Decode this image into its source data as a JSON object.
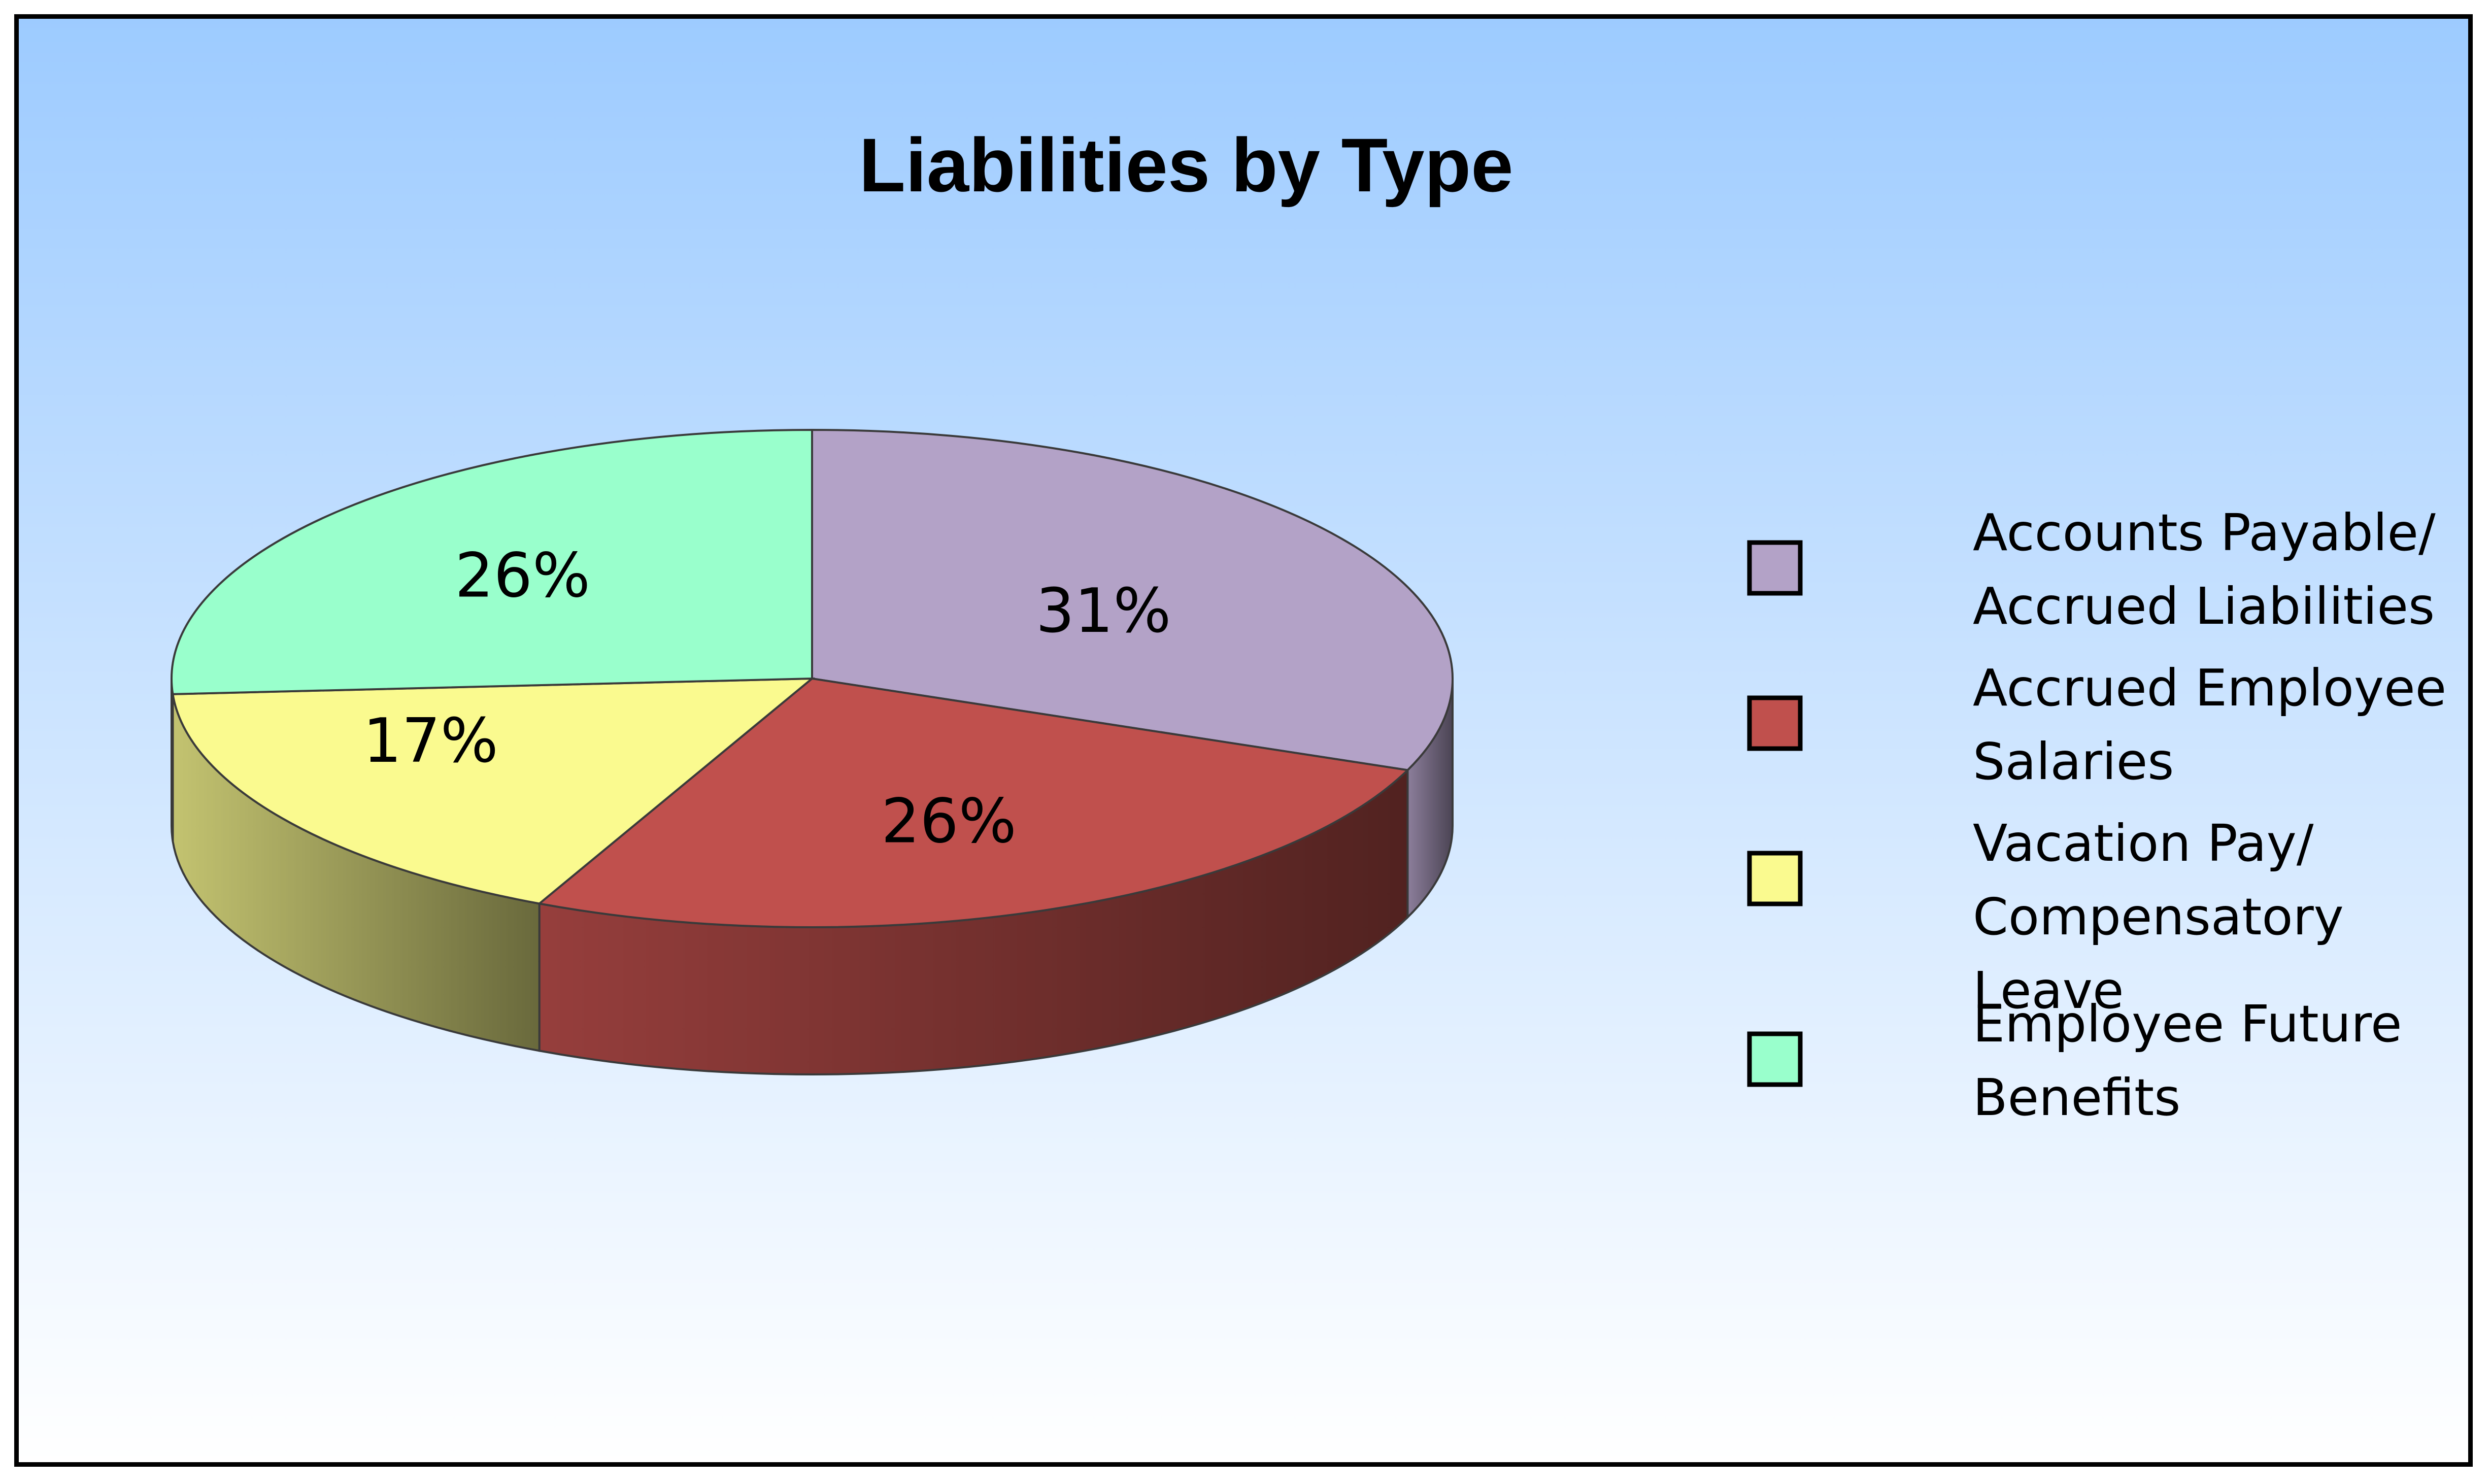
{
  "chart_data": {
    "type": "pie",
    "title": "Liabilities by Type",
    "style": "3d",
    "legend_position": "right",
    "slices": [
      {
        "name": "Accounts Payable/ Accrued Liabilities",
        "legend_lines": [
          "Accounts Payable/",
          "Accrued Liabilities"
        ],
        "value": 31,
        "label": "31%",
        "color": "#B3A2C7"
      },
      {
        "name": "Accrued Employee Salaries",
        "legend_lines": [
          "Accrued Employee",
          "Salaries"
        ],
        "value": 26,
        "label": "26%",
        "color": "#C0504D"
      },
      {
        "name": "Vacation Pay/ Compensatory Leave",
        "legend_lines": [
          "Vacation Pay/",
          "Compensatory",
          "Leave"
        ],
        "value": 17,
        "label": "17%",
        "color": "#FAFA8F"
      },
      {
        "name": "Employee Future Benefits",
        "legend_lines": [
          "Employee Future",
          "Benefits"
        ],
        "value": 26,
        "label": "26%",
        "color": "#99FFCC"
      }
    ],
    "background_gradient": [
      "#9DCBFF",
      "#FFFFFF"
    ]
  }
}
